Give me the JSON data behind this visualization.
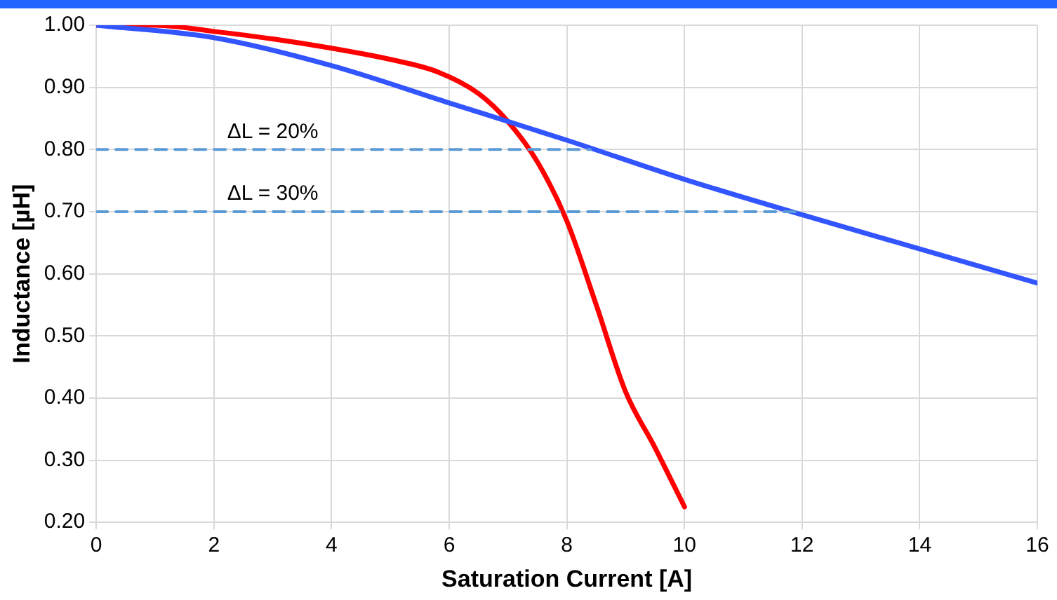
{
  "chart_data": {
    "type": "line",
    "xlabel": "Saturation Current [A]",
    "ylabel": "Inductance [µH]",
    "xlim": [
      0,
      16
    ],
    "xticks": [
      0,
      2,
      4,
      6,
      8,
      10,
      12,
      14,
      16
    ],
    "ylim": [
      0.2,
      1.0
    ],
    "yticks": [
      {
        "value": 0.2,
        "label": "0.20"
      },
      {
        "value": 0.3,
        "label": "0.30"
      },
      {
        "value": 0.4,
        "label": "0.40"
      },
      {
        "value": 0.5,
        "label": "0.50"
      },
      {
        "value": 0.6,
        "label": "0.60"
      },
      {
        "value": 0.7,
        "label": "0.70"
      },
      {
        "value": 0.8,
        "label": "0.80"
      },
      {
        "value": 0.9,
        "label": "0.90"
      },
      {
        "value": 1.0,
        "label": "1.00"
      }
    ],
    "grid": true,
    "legend": false,
    "marker": "none",
    "series": [
      {
        "color": "#5b9bd5",
        "line_style": "dashed",
        "x": [
          0,
          8.4
        ],
        "values": [
          0.8,
          0.8
        ]
      },
      {
        "color": "#5b9bd5",
        "line_style": "dashed",
        "x": [
          0,
          11.9
        ],
        "values": [
          0.7,
          0.7
        ]
      },
      {
        "color": "#3355ff",
        "line_style": "solid",
        "x": [
          0,
          2,
          4,
          6,
          8,
          10,
          12,
          14,
          16
        ],
        "values": [
          1.0,
          0.98,
          0.935,
          0.875,
          0.815,
          0.752,
          0.695,
          0.64,
          0.585
        ]
      },
      {
        "color": "#ff0000",
        "line_style": "solid",
        "x": [
          0,
          1,
          2,
          3,
          4,
          5,
          5.8,
          6.5,
          7,
          7.5,
          8,
          8.5,
          9,
          9.5,
          10
        ],
        "values": [
          1.0,
          1.0,
          0.99,
          0.978,
          0.963,
          0.945,
          0.925,
          0.89,
          0.845,
          0.78,
          0.685,
          0.55,
          0.41,
          0.32,
          0.225
        ]
      }
    ],
    "annotations": [
      {
        "text": "ΔL = 20%",
        "x": 3,
        "y": 0.8
      },
      {
        "text": "ΔL = 30%",
        "x": 3,
        "y": 0.7
      }
    ]
  }
}
